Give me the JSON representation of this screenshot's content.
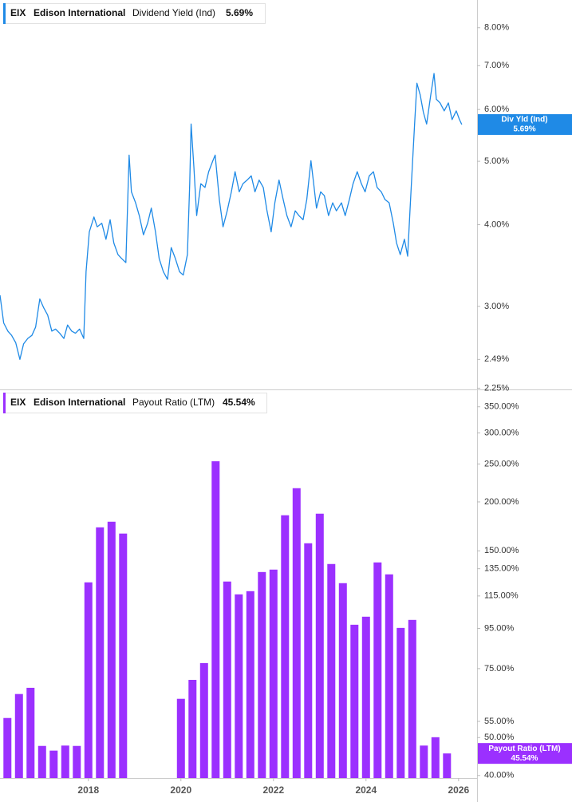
{
  "chart_data": [
    {
      "type": "line",
      "log_scale": true,
      "grid": false,
      "color": "#1f8ae6",
      "legend": {
        "ticker": "EIX",
        "company": "Edison International",
        "metric": "Dividend Yield (Ind)",
        "value_label": "5.69%"
      },
      "badge": {
        "label": "Div Yld (Ind)",
        "value_label": "5.69%"
      },
      "xlim": [
        2016.09,
        2026.4
      ],
      "ylim": [
        2.24,
        8.82
      ],
      "yticks": [
        {
          "value": 8,
          "label": "8.00%"
        },
        {
          "value": 7,
          "label": "7.00%"
        },
        {
          "value": 6,
          "label": "6.00%"
        },
        {
          "value": 5,
          "label": "5.00%"
        },
        {
          "value": 4,
          "label": "4.00%"
        },
        {
          "value": 3,
          "label": "3.00%"
        },
        {
          "value": 2.49,
          "label": "2.49%"
        },
        {
          "value": 2.25,
          "label": "2.25%"
        }
      ],
      "x": [
        2016.09,
        2016.17,
        2016.26,
        2016.34,
        2016.43,
        2016.52,
        2016.6,
        2016.69,
        2016.78,
        2016.86,
        2016.95,
        2017.03,
        2017.12,
        2017.21,
        2017.29,
        2017.38,
        2017.47,
        2017.55,
        2017.64,
        2017.72,
        2017.81,
        2017.9,
        2017.95,
        2018.02,
        2018.12,
        2018.19,
        2018.29,
        2018.38,
        2018.47,
        2018.55,
        2018.64,
        2018.72,
        2018.81,
        2018.88,
        2018.93,
        2019.02,
        2019.1,
        2019.19,
        2019.28,
        2019.36,
        2019.45,
        2019.53,
        2019.62,
        2019.71,
        2019.79,
        2019.88,
        2019.97,
        2020.05,
        2020.14,
        2020.19,
        2020.22,
        2020.28,
        2020.34,
        2020.43,
        2020.52,
        2020.6,
        2020.69,
        2020.74,
        2020.83,
        2020.91,
        2021.0,
        2021.09,
        2021.17,
        2021.26,
        2021.34,
        2021.43,
        2021.52,
        2021.6,
        2021.69,
        2021.78,
        2021.86,
        2021.95,
        2022.03,
        2022.12,
        2022.21,
        2022.29,
        2022.38,
        2022.47,
        2022.55,
        2022.64,
        2022.72,
        2022.81,
        2022.86,
        2022.93,
        2023.02,
        2023.1,
        2023.19,
        2023.28,
        2023.36,
        2023.47,
        2023.55,
        2023.64,
        2023.72,
        2023.81,
        2023.9,
        2023.98,
        2024.07,
        2024.16,
        2024.24,
        2024.33,
        2024.41,
        2024.5,
        2024.59,
        2024.66,
        2024.74,
        2024.83,
        2024.9,
        2024.95,
        2025.0,
        2025.05,
        2025.1,
        2025.17,
        2025.24,
        2025.31,
        2025.4,
        2025.47,
        2025.52,
        2025.6,
        2025.69,
        2025.78,
        2025.86,
        2025.95,
        2026.02,
        2026.07
      ],
      "values": [
        3.12,
        2.83,
        2.75,
        2.71,
        2.64,
        2.49,
        2.63,
        2.68,
        2.71,
        2.79,
        3.08,
        2.99,
        2.91,
        2.75,
        2.77,
        2.73,
        2.68,
        2.81,
        2.75,
        2.73,
        2.77,
        2.68,
        3.39,
        3.9,
        4.11,
        3.97,
        4.02,
        3.8,
        4.07,
        3.75,
        3.6,
        3.55,
        3.5,
        5.11,
        4.49,
        4.32,
        4.13,
        3.86,
        4.02,
        4.24,
        3.9,
        3.55,
        3.39,
        3.3,
        3.69,
        3.55,
        3.39,
        3.35,
        3.6,
        4.62,
        5.7,
        4.9,
        4.13,
        4.62,
        4.56,
        4.82,
        5.01,
        5.11,
        4.37,
        3.97,
        4.2,
        4.49,
        4.82,
        4.49,
        4.62,
        4.68,
        4.75,
        4.49,
        4.68,
        4.56,
        4.2,
        3.9,
        4.32,
        4.68,
        4.37,
        4.13,
        3.97,
        4.2,
        4.13,
        4.07,
        4.37,
        5.01,
        4.68,
        4.24,
        4.49,
        4.43,
        4.13,
        4.32,
        4.2,
        4.32,
        4.13,
        4.37,
        4.62,
        4.82,
        4.62,
        4.49,
        4.75,
        4.82,
        4.56,
        4.49,
        4.37,
        4.32,
        4.02,
        3.75,
        3.6,
        3.8,
        3.58,
        4.2,
        4.9,
        5.7,
        6.58,
        6.32,
        5.94,
        5.7,
        6.32,
        6.81,
        6.22,
        6.14,
        5.97,
        6.14,
        5.79,
        5.97,
        5.79,
        5.69
      ]
    },
    {
      "type": "bar",
      "log_scale": true,
      "grid": false,
      "color": "#9b30ff",
      "legend": {
        "ticker": "EIX",
        "company": "Edison International",
        "metric": "Payout Ratio (LTM)",
        "value_label": "45.54%"
      },
      "badge": {
        "label": "Payout Ratio (LTM)",
        "value_label": "45.54%"
      },
      "xlim": [
        2016.09,
        2026.4
      ],
      "xticks": [
        2018,
        2020,
        2022,
        2024,
        2026
      ],
      "ylim": [
        39.4,
        384
      ],
      "yticks": [
        {
          "value": 350,
          "label": "350.00%"
        },
        {
          "value": 300,
          "label": "300.00%"
        },
        {
          "value": 250,
          "label": "250.00%"
        },
        {
          "value": 200,
          "label": "200.00%"
        },
        {
          "value": 150,
          "label": "150.00%"
        },
        {
          "value": 135,
          "label": "135.00%"
        },
        {
          "value": 115,
          "label": "115.00%"
        },
        {
          "value": 95,
          "label": "95.00%"
        },
        {
          "value": 75,
          "label": "75.00%"
        },
        {
          "value": 55,
          "label": "55.00%"
        },
        {
          "value": 50,
          "label": "50.00%"
        },
        {
          "value": 40,
          "label": "40.00%"
        }
      ],
      "x": [
        2016.25,
        2016.5,
        2016.75,
        2017.0,
        2017.25,
        2017.5,
        2017.75,
        2018.0,
        2018.25,
        2018.5,
        2018.75,
        2020.0,
        2020.25,
        2020.5,
        2020.75,
        2021.0,
        2021.25,
        2021.5,
        2021.75,
        2022.0,
        2022.25,
        2022.5,
        2022.75,
        2023.0,
        2023.25,
        2023.5,
        2023.75,
        2024.0,
        2024.25,
        2024.5,
        2024.75,
        2025.0,
        2025.25,
        2025.5,
        2025.75
      ],
      "values": [
        56.1,
        64.6,
        67.0,
        47.6,
        46.3,
        47.7,
        47.6,
        124.6,
        172.2,
        178,
        166,
        62.8,
        70.2,
        77.5,
        254,
        125.2,
        116.1,
        118.3,
        132.4,
        134.3,
        184.9,
        216.8,
        156.8,
        186.6,
        138.8,
        124.0,
        97.1,
        101.8,
        140.1,
        130.6,
        95.3,
        99.9,
        47.7,
        50.1,
        45.54
      ]
    }
  ]
}
